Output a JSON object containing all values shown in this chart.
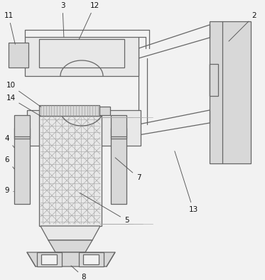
{
  "bg": "#f2f2f2",
  "lc": "#666666",
  "fc_light": "#e8e8e8",
  "fc_mid": "#d8d8d8",
  "lw": 0.9,
  "fw": 3.73,
  "fh": 3.94
}
